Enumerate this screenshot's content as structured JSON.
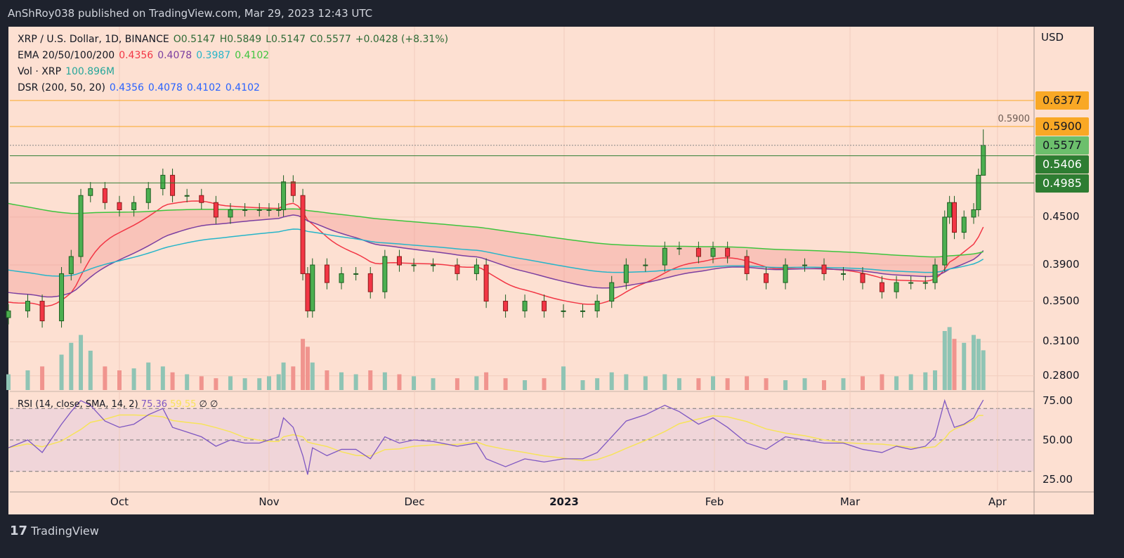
{
  "header": {
    "published": "AnShRoy038 published on TradingView.com, Mar 29, 2023 12:43 UTC"
  },
  "legend": {
    "symbol": "XRP / U.S. Dollar, 1D, BINANCE",
    "open": "O0.5147",
    "high": "H0.5849",
    "low": "L0.5147",
    "close": "C0.5577",
    "change": "+0.0428 (+8.31%)",
    "ema_label": "EMA 20/50/100/200",
    "ema_values": [
      "0.4356",
      "0.4078",
      "0.3987",
      "0.4102"
    ],
    "vol_label": "Vol · XRP",
    "vol_value": "100.896M",
    "dsr_label": "DSR (200, 50, 20)",
    "dsr_values": [
      "0.4356",
      "0.4078",
      "0.4102",
      "0.4102"
    ]
  },
  "rsi_legend": {
    "label": "RSI (14, close, SMA, 14, 2)",
    "rsi": "75.36",
    "sma": "59.55",
    "e1": "∅",
    "e2": "∅"
  },
  "colors": {
    "up": "#4caf50",
    "down": "#f23645",
    "ema20": "#f23645",
    "ema50": "#7b3fa0",
    "ema100": "#26b5c9",
    "ema200": "#3ec43e",
    "orange": "#f9a825",
    "green": "#2e7d32",
    "rsi": "#7e57c2",
    "rsi_sma": "#f7e35a"
  },
  "footer": {
    "brand": "TradingView"
  },
  "chart_data": {
    "type": "candlestick",
    "scale": "log",
    "currency": "USD",
    "grid": true,
    "price_ticks": [
      "0.5900",
      "0.4500",
      "0.3900",
      "0.3500",
      "0.3100",
      "0.2800"
    ],
    "time_ticks": [
      "Oct",
      "Nov",
      "Dec",
      "2023",
      "Feb",
      "Mar",
      "Apr"
    ],
    "price_tags": [
      {
        "value": "0.6377",
        "color": "orange"
      },
      {
        "value": "0.5900",
        "color": "orange"
      },
      {
        "value": "0.5577",
        "color": "last"
      },
      {
        "value": "0.5406",
        "color": "green"
      },
      {
        "value": "0.4985",
        "color": "green"
      }
    ],
    "rsi_ticks": [
      "75.00",
      "50.00",
      "25.00"
    ],
    "dates": [
      "2022-09-08",
      "2022-09-12",
      "2022-09-15",
      "2022-09-19",
      "2022-09-21",
      "2022-09-23",
      "2022-09-25",
      "2022-09-28",
      "2022-10-01",
      "2022-10-04",
      "2022-10-07",
      "2022-10-10",
      "2022-10-12",
      "2022-10-15",
      "2022-10-18",
      "2022-10-21",
      "2022-10-24",
      "2022-10-27",
      "2022-10-30",
      "2022-11-01",
      "2022-11-03",
      "2022-11-04",
      "2022-11-06",
      "2022-11-08",
      "2022-11-09",
      "2022-11-10",
      "2022-11-13",
      "2022-11-16",
      "2022-11-19",
      "2022-11-22",
      "2022-11-25",
      "2022-11-28",
      "2022-12-01",
      "2022-12-05",
      "2022-12-10",
      "2022-12-14",
      "2022-12-16",
      "2022-12-20",
      "2022-12-24",
      "2022-12-28",
      "2023-01-01",
      "2023-01-05",
      "2023-01-08",
      "2023-01-11",
      "2023-01-14",
      "2023-01-18",
      "2023-01-22",
      "2023-01-25",
      "2023-01-29",
      "2023-02-01",
      "2023-02-04",
      "2023-02-08",
      "2023-02-12",
      "2023-02-16",
      "2023-02-20",
      "2023-02-24",
      "2023-02-28",
      "2023-03-04",
      "2023-03-08",
      "2023-03-11",
      "2023-03-14",
      "2023-03-17",
      "2023-03-19",
      "2023-03-21",
      "2023-03-22",
      "2023-03-23",
      "2023-03-25",
      "2023-03-27",
      "2023-03-28",
      "2023-03-29"
    ],
    "close": [
      0.34,
      0.35,
      0.33,
      0.38,
      0.4,
      0.48,
      0.49,
      0.47,
      0.46,
      0.47,
      0.49,
      0.51,
      0.48,
      0.48,
      0.47,
      0.45,
      0.46,
      0.46,
      0.46,
      0.46,
      0.46,
      0.5,
      0.48,
      0.38,
      0.34,
      0.39,
      0.37,
      0.38,
      0.38,
      0.36,
      0.4,
      0.39,
      0.39,
      0.39,
      0.38,
      0.39,
      0.35,
      0.34,
      0.35,
      0.34,
      0.34,
      0.34,
      0.35,
      0.37,
      0.39,
      0.39,
      0.41,
      0.41,
      0.4,
      0.41,
      0.4,
      0.38,
      0.37,
      0.39,
      0.39,
      0.38,
      0.38,
      0.37,
      0.36,
      0.37,
      0.37,
      0.37,
      0.39,
      0.45,
      0.47,
      0.43,
      0.45,
      0.46,
      0.51,
      0.5577
    ],
    "volume_m": [
      40,
      50,
      60,
      90,
      120,
      140,
      100,
      60,
      50,
      55,
      70,
      60,
      45,
      40,
      35,
      30,
      35,
      30,
      30,
      35,
      40,
      70,
      60,
      130,
      110,
      70,
      50,
      45,
      40,
      50,
      45,
      40,
      35,
      30,
      30,
      35,
      45,
      30,
      25,
      30,
      60,
      25,
      30,
      45,
      40,
      35,
      40,
      30,
      30,
      35,
      30,
      35,
      30,
      25,
      30,
      25,
      30,
      35,
      40,
      35,
      40,
      45,
      50,
      150,
      160,
      130,
      120,
      140,
      130,
      101
    ],
    "rsi": [
      45,
      50,
      42,
      60,
      68,
      75,
      72,
      62,
      58,
      60,
      66,
      70,
      58,
      55,
      52,
      46,
      50,
      48,
      48,
      50,
      52,
      64,
      58,
      40,
      28,
      45,
      40,
      44,
      44,
      38,
      52,
      48,
      50,
      49,
      46,
      48,
      38,
      33,
      38,
      36,
      38,
      38,
      42,
      52,
      62,
      66,
      72,
      68,
      60,
      64,
      58,
      48,
      44,
      52,
      50,
      48,
      48,
      44,
      42,
      46,
      44,
      46,
      52,
      75,
      66,
      58,
      60,
      64,
      70,
      75.36
    ]
  }
}
